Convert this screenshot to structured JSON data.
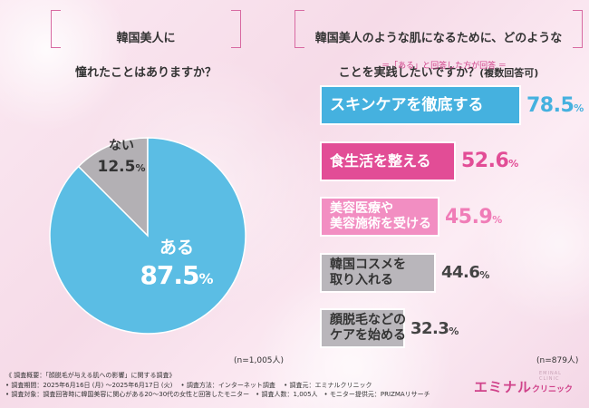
{
  "left_question": {
    "line1": "韓国美人に",
    "line2": "憧れたことはありますか？"
  },
  "right_question": {
    "line1": "韓国美人のような肌になるために、どのような",
    "line2": "ことを実践したいですか？",
    "line2_small": "(複数回答可)"
  },
  "right_subhead": "＝「ある」と回答した方が回答 ＝",
  "left_n": "(n=1,005人)",
  "right_n": "(n=879人)",
  "pie_labels": {
    "yes_label": "ある",
    "yes_value": "87.5",
    "yes_unit": "%",
    "no_label": "ない",
    "no_value": "12.5",
    "no_unit": "%"
  },
  "bar_labels": [
    {
      "text": "スキンケアを徹底する",
      "value": "78.5",
      "unit": "%"
    },
    {
      "text": "食生活を整える",
      "value": "52.6",
      "unit": "%"
    },
    {
      "text": "美容医療や\n美容施術を受ける",
      "value": "45.9",
      "unit": "%"
    },
    {
      "text": "韓国コスメを\n取り入れる",
      "value": "44.6",
      "unit": "%"
    },
    {
      "text": "顔脱毛などの\nケアを始める",
      "value": "32.3",
      "unit": "%"
    }
  ],
  "chart_data": [
    {
      "type": "pie",
      "categories": [
        "ある",
        "ない"
      ],
      "values": [
        87.5,
        12.5
      ],
      "colors": [
        "#5bbde4",
        "#b3b0b4"
      ]
    },
    {
      "type": "bar",
      "orientation": "horizontal",
      "categories": [
        "スキンケアを徹底する",
        "食生活を整える",
        "美容医療や美容施術を受ける",
        "韓国コスメを取り入れる",
        "顔脱毛などのケアを始める"
      ],
      "values": [
        78.5,
        52.6,
        45.9,
        44.6,
        32.3
      ],
      "colors": [
        "#45b1df",
        "#e24d96",
        "#f28ec2",
        "#b9b6bb",
        "#b9b6bb"
      ],
      "value_colors": [
        "#45b1df",
        "#e24d96",
        "#f07cb7",
        "#444444",
        "#444444"
      ]
    }
  ],
  "footer": {
    "line1": "《 調査概要：「顔脱毛が与える肌への影響」に関する調査》",
    "line2": "• 調査期間：2025年6月16日 (月) ～2025年6月17日 (火)　 • 調査方法：インターネット調査　 • 調査元：エミナルクリニック",
    "line3": "• 調査対象：調査回答時に韓国美容に関心がある20～30代の女性と回答したモニター　• 調査人数：1,005人　• モニター提供元：PRIZMAリサーチ"
  },
  "logo": {
    "main": "エミナル",
    "sub": "クリニック",
    "tiny": "EMINAL CLINIC"
  }
}
